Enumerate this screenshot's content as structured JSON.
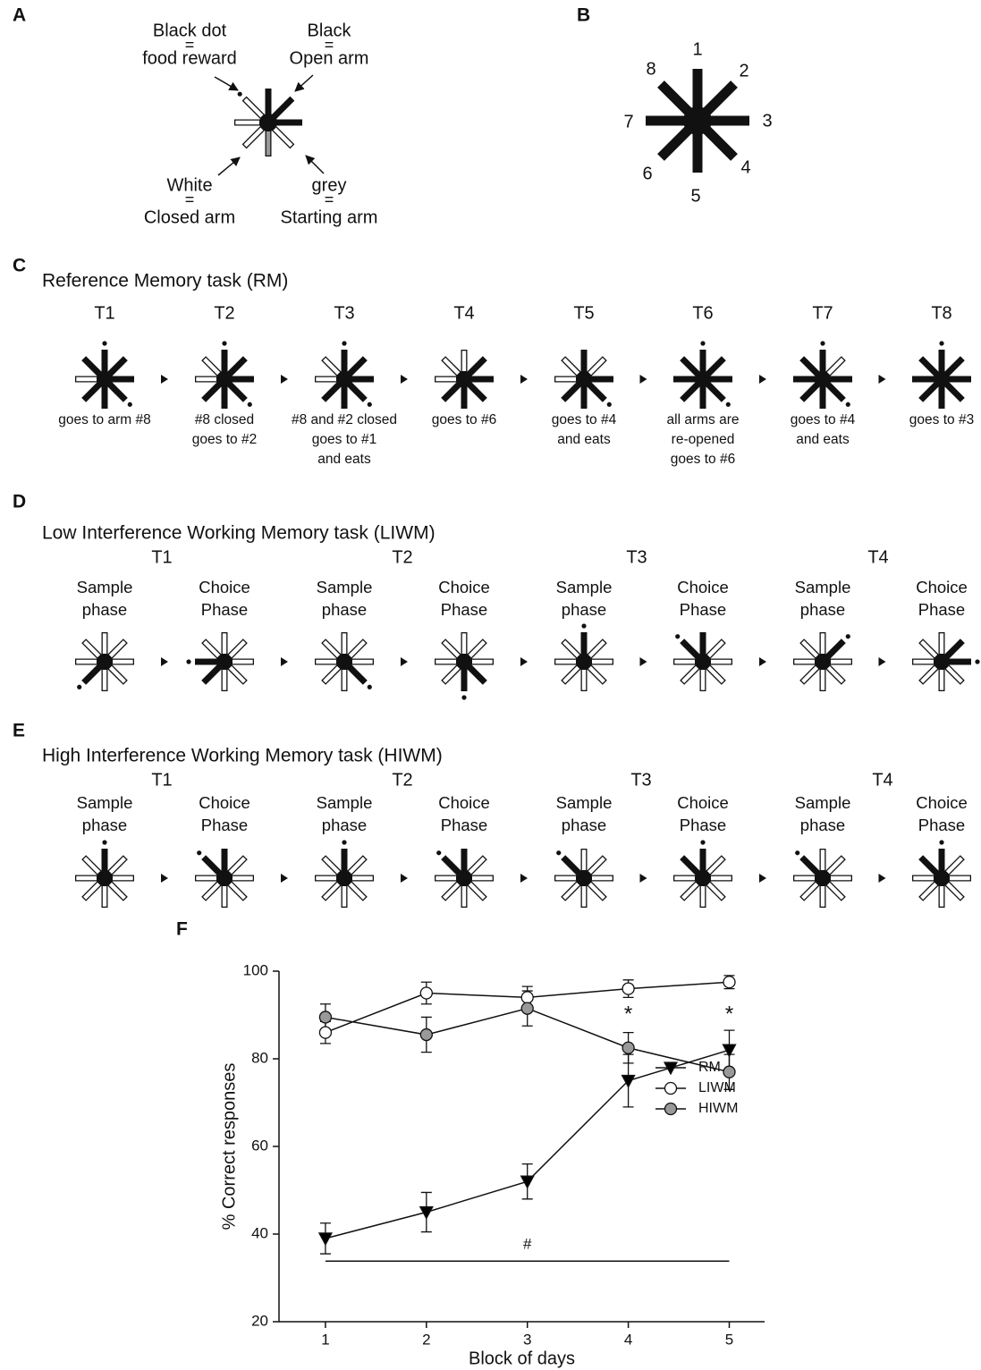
{
  "panel_labels": [
    "A",
    "B",
    "C",
    "D",
    "E",
    "F"
  ],
  "panel_a": {
    "legend": [
      {
        "lines": [
          "Black dot",
          "=",
          "food reward"
        ]
      },
      {
        "lines": [
          "Black",
          "=",
          "Open arm"
        ]
      },
      {
        "lines": [
          "White",
          "=",
          "Closed arm"
        ]
      },
      {
        "lines": [
          "grey",
          "=",
          "Starting arm"
        ]
      }
    ]
  },
  "panel_b": {
    "arm_numbers": [
      1,
      2,
      3,
      4,
      5,
      6,
      7,
      8
    ]
  },
  "panel_c": {
    "title": "Reference Memory task (RM)",
    "trials": [
      {
        "label": "T1",
        "caption": [
          "goes to arm #8"
        ]
      },
      {
        "label": "T2",
        "caption": [
          "#8 closed",
          "goes to #2"
        ]
      },
      {
        "label": "T3",
        "caption": [
          "#8 and #2 closed",
          "goes to #1",
          "and eats"
        ]
      },
      {
        "label": "T4",
        "caption": [
          "goes to #6"
        ]
      },
      {
        "label": "T5",
        "caption": [
          "goes to #4",
          "and eats"
        ]
      },
      {
        "label": "T6",
        "caption": [
          "all arms are",
          "re-opened",
          "goes to #6"
        ]
      },
      {
        "label": "T7",
        "caption": [
          "goes to #4",
          "and eats"
        ]
      },
      {
        "label": "T8",
        "caption": [
          "goes to #3"
        ]
      }
    ]
  },
  "panel_d": {
    "title": "Low Interference Working Memory task (LIWM)",
    "trials": [
      "T1",
      "T2",
      "T3",
      "T4"
    ],
    "phases": [
      [
        "Sample",
        "phase"
      ],
      [
        "Choice",
        "Phase"
      ],
      [
        "Sample",
        "phase"
      ],
      [
        "Choice",
        "Phase"
      ],
      [
        "Sample",
        "phase"
      ],
      [
        "Choice",
        "Phase"
      ],
      [
        "Sample",
        "phase"
      ],
      [
        "Choice",
        "Phase"
      ]
    ]
  },
  "panel_e": {
    "title": "High Interference Working Memory task (HIWM)",
    "trials": [
      "T1",
      "T2",
      "T3",
      "T4"
    ],
    "phases": [
      [
        "Sample",
        "phase"
      ],
      [
        "Choice",
        "Phase"
      ],
      [
        "Sample",
        "phase"
      ],
      [
        "Choice",
        "Phase"
      ],
      [
        "Sample",
        "phase"
      ],
      [
        "Choice",
        "Phase"
      ],
      [
        "Sample",
        "phase"
      ],
      [
        "Choice",
        "Phase"
      ]
    ]
  },
  "chart_data": {
    "type": "line",
    "x_label": "Block of days",
    "y_label": "% Correct responses",
    "x": [
      1,
      2,
      3,
      4,
      5
    ],
    "xlim": [
      0.54,
      5.35
    ],
    "xticks": [
      1,
      2,
      3,
      4,
      5
    ],
    "ylim": [
      20,
      100
    ],
    "yticks": [
      20,
      40,
      60,
      80,
      100
    ],
    "legend": "center right",
    "series": [
      {
        "name": "RM",
        "color": "#000000",
        "marker": "v",
        "values": [
          39,
          45,
          52,
          75,
          82
        ],
        "errors": [
          3.5,
          4.5,
          4,
          6,
          4.5
        ]
      },
      {
        "name": "LIWM",
        "color": "#ffffff",
        "marker": "o",
        "values": [
          86,
          95,
          94,
          96,
          97.5
        ],
        "errors": [
          2.5,
          2.5,
          2.5,
          2,
          1.5
        ]
      },
      {
        "name": "HIWM",
        "color": "#999999",
        "marker": "o",
        "values": [
          89.5,
          85.5,
          91.5,
          82.5,
          77
        ],
        "errors": [
          3,
          4,
          4,
          3.5,
          4
        ]
      }
    ],
    "annotations": [
      {
        "text": "*",
        "x": 4,
        "y": 90
      },
      {
        "text": "*",
        "x": 5,
        "y": 90
      },
      {
        "text": "#",
        "x": 3,
        "y": 37.5
      }
    ]
  }
}
